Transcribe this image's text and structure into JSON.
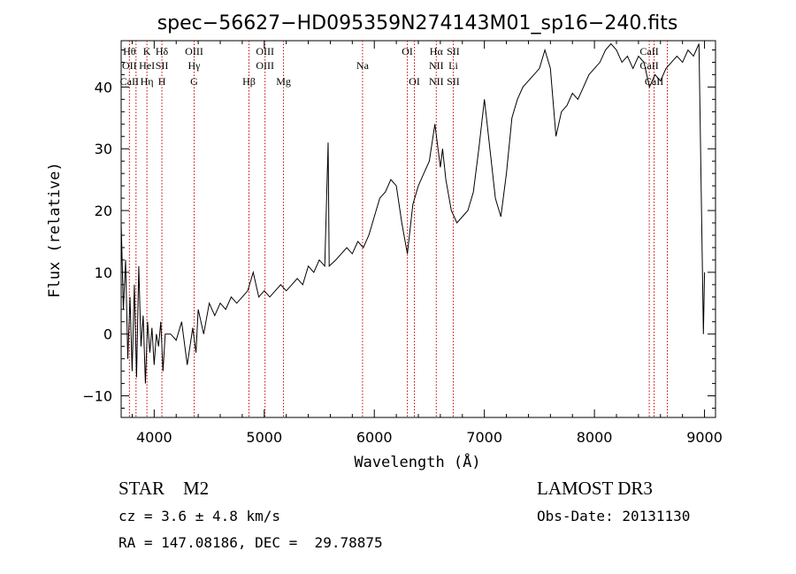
{
  "chart_data": {
    "type": "line",
    "title": "spec−56627−HD095359N274143M01_sp16−240.fits",
    "xlabel": "Wavelength (Å)",
    "ylabel": "Flux (relative)",
    "xlim": [
      3700,
      9100
    ],
    "ylim": [
      -13.5,
      47.5
    ],
    "xticks": [
      4000,
      5000,
      6000,
      7000,
      8000,
      9000
    ],
    "yticks": [
      -10,
      0,
      10,
      20,
      30,
      40
    ],
    "grid": false,
    "series": [
      {
        "name": "spectrum",
        "color": "#000000",
        "points": [
          [
            3700,
            18
          ],
          [
            3720,
            4
          ],
          [
            3740,
            12
          ],
          [
            3760,
            -4
          ],
          [
            3780,
            6
          ],
          [
            3800,
            -6
          ],
          [
            3820,
            8
          ],
          [
            3840,
            -7
          ],
          [
            3860,
            11
          ],
          [
            3880,
            -2
          ],
          [
            3900,
            3
          ],
          [
            3920,
            -8
          ],
          [
            3940,
            2
          ],
          [
            3960,
            -3
          ],
          [
            3980,
            1
          ],
          [
            4000,
            -5
          ],
          [
            4020,
            0
          ],
          [
            4040,
            -2
          ],
          [
            4060,
            2
          ],
          [
            4080,
            -6
          ],
          [
            4100,
            0
          ],
          [
            4150,
            0
          ],
          [
            4200,
            -1
          ],
          [
            4250,
            2
          ],
          [
            4300,
            -5
          ],
          [
            4350,
            1
          ],
          [
            4380,
            -3
          ],
          [
            4400,
            4
          ],
          [
            4450,
            0
          ],
          [
            4500,
            5
          ],
          [
            4550,
            3
          ],
          [
            4600,
            5
          ],
          [
            4650,
            4
          ],
          [
            4700,
            6
          ],
          [
            4750,
            5
          ],
          [
            4800,
            6
          ],
          [
            4850,
            7
          ],
          [
            4900,
            10
          ],
          [
            4950,
            6
          ],
          [
            5000,
            7
          ],
          [
            5050,
            6
          ],
          [
            5100,
            7
          ],
          [
            5150,
            8
          ],
          [
            5200,
            7
          ],
          [
            5250,
            8
          ],
          [
            5300,
            9
          ],
          [
            5350,
            8
          ],
          [
            5400,
            11
          ],
          [
            5450,
            10
          ],
          [
            5500,
            12
          ],
          [
            5550,
            11
          ],
          [
            5580,
            31
          ],
          [
            5590,
            11
          ],
          [
            5650,
            12
          ],
          [
            5700,
            13
          ],
          [
            5750,
            14
          ],
          [
            5800,
            13
          ],
          [
            5850,
            15
          ],
          [
            5900,
            14
          ],
          [
            5950,
            16
          ],
          [
            6000,
            19
          ],
          [
            6050,
            22
          ],
          [
            6100,
            23
          ],
          [
            6150,
            25
          ],
          [
            6200,
            24
          ],
          [
            6250,
            18
          ],
          [
            6300,
            13
          ],
          [
            6350,
            21
          ],
          [
            6400,
            24
          ],
          [
            6450,
            26
          ],
          [
            6500,
            28
          ],
          [
            6550,
            34
          ],
          [
            6600,
            27
          ],
          [
            6620,
            30
          ],
          [
            6650,
            25
          ],
          [
            6700,
            20
          ],
          [
            6750,
            18
          ],
          [
            6800,
            19
          ],
          [
            6850,
            20
          ],
          [
            6900,
            23
          ],
          [
            6950,
            30
          ],
          [
            7000,
            38
          ],
          [
            7050,
            30
          ],
          [
            7100,
            22
          ],
          [
            7150,
            19
          ],
          [
            7200,
            26
          ],
          [
            7250,
            35
          ],
          [
            7300,
            38
          ],
          [
            7350,
            40
          ],
          [
            7400,
            41
          ],
          [
            7450,
            42
          ],
          [
            7500,
            43
          ],
          [
            7550,
            46
          ],
          [
            7600,
            43
          ],
          [
            7650,
            32
          ],
          [
            7700,
            36
          ],
          [
            7750,
            37
          ],
          [
            7800,
            39
          ],
          [
            7850,
            38
          ],
          [
            7900,
            40
          ],
          [
            7950,
            42
          ],
          [
            8000,
            43
          ],
          [
            8050,
            44
          ],
          [
            8100,
            46
          ],
          [
            8150,
            47
          ],
          [
            8200,
            46
          ],
          [
            8250,
            44
          ],
          [
            8300,
            45
          ],
          [
            8350,
            43
          ],
          [
            8400,
            45
          ],
          [
            8450,
            44
          ],
          [
            8500,
            40
          ],
          [
            8550,
            42
          ],
          [
            8600,
            41
          ],
          [
            8650,
            43
          ],
          [
            8700,
            44
          ],
          [
            8750,
            45
          ],
          [
            8800,
            44
          ],
          [
            8850,
            46
          ],
          [
            8900,
            45
          ],
          [
            8950,
            47
          ],
          [
            8990,
            0
          ],
          [
            9000,
            10
          ]
        ]
      }
    ],
    "line_markers": {
      "color": "#cc0000",
      "label_color": "#000000",
      "lines": [
        {
          "name": "CaII-H-eps",
          "x": 3775,
          "labels": [
            "Hθ",
            "OII",
            "CaII"
          ]
        },
        {
          "name": "H-eta",
          "x": 3835,
          "labels": [
            " ",
            " ",
            " "
          ]
        },
        {
          "name": "K",
          "x": 3934,
          "labels": [
            "K",
            "HeI",
            "Hη"
          ]
        },
        {
          "name": "SII",
          "x": 4070,
          "labels": [
            "Hδ",
            "SII",
            "H"
          ]
        },
        {
          "name": "OIII-4363",
          "x": 4363,
          "labels": [
            "OIII",
            "Hγ",
            "G"
          ]
        },
        {
          "name": "H-beta",
          "x": 4861,
          "labels": [
            "",
            "",
            "Hβ"
          ]
        },
        {
          "name": "OIII-5007",
          "x": 5007,
          "labels": [
            "OIII",
            "OIII",
            ""
          ]
        },
        {
          "name": "Mg",
          "x": 5175,
          "labels": [
            "",
            "",
            "Mg"
          ]
        },
        {
          "name": "Na",
          "x": 5893,
          "labels": [
            "",
            "Na",
            ""
          ]
        },
        {
          "name": "OI-6300",
          "x": 6300,
          "labels": [
            "OI",
            "",
            ""
          ]
        },
        {
          "name": "OI-6364",
          "x": 6364,
          "labels": [
            "",
            "",
            "OI"
          ]
        },
        {
          "name": "H-alpha",
          "x": 6563,
          "labels": [
            "Hα",
            "NII",
            "NII"
          ]
        },
        {
          "name": "SII-6717",
          "x": 6717,
          "labels": [
            "SII",
            "Li",
            "SII"
          ]
        },
        {
          "name": "CaII-8498",
          "x": 8498,
          "labels": [
            "CaII",
            "CaII",
            ""
          ]
        },
        {
          "name": "CaII-8542",
          "x": 8542,
          "labels": [
            "",
            "",
            "CaII"
          ]
        },
        {
          "name": "CaII-8662",
          "x": 8662,
          "labels": [
            "",
            "",
            ""
          ]
        }
      ]
    }
  },
  "info": {
    "object_line": "STAR    M2",
    "survey": "LAMOST DR3",
    "cz": "cz = 3.6 ± 4.8 km/s",
    "obs_date": "Obs-Date: 20131130",
    "coords": "RA = 147.08186, DEC =  29.78875"
  }
}
